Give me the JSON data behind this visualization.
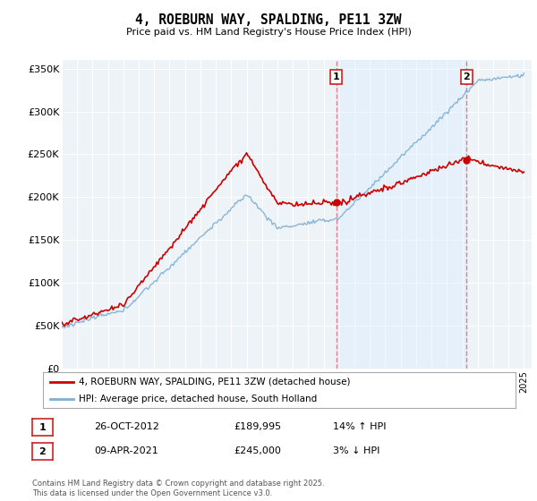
{
  "title": "4, ROEBURN WAY, SPALDING, PE11 3ZW",
  "subtitle": "Price paid vs. HM Land Registry's House Price Index (HPI)",
  "ylim": [
    0,
    360000
  ],
  "yticks": [
    0,
    50000,
    100000,
    150000,
    200000,
    250000,
    300000,
    350000
  ],
  "ytick_labels": [
    "£0",
    "£50K",
    "£100K",
    "£150K",
    "£200K",
    "£250K",
    "£300K",
    "£350K"
  ],
  "x_start_year": 1995,
  "x_end_year": 2025,
  "property_color": "#cc0000",
  "hpi_color": "#7bafd4",
  "vline_color": "#e08080",
  "shade_color": "#ddeeff",
  "marker1_year": 2012.82,
  "marker2_year": 2021.27,
  "marker1_value": 189995,
  "marker2_value": 245000,
  "legend_label1": "4, ROEBURN WAY, SPALDING, PE11 3ZW (detached house)",
  "legend_label2": "HPI: Average price, detached house, South Holland",
  "annotation1_label": "1",
  "annotation1_date": "26-OCT-2012",
  "annotation1_price": "£189,995",
  "annotation1_hpi": "14% ↑ HPI",
  "annotation2_label": "2",
  "annotation2_date": "09-APR-2021",
  "annotation2_price": "£245,000",
  "annotation2_hpi": "3% ↓ HPI",
  "footnote": "Contains HM Land Registry data © Crown copyright and database right 2025.\nThis data is licensed under the Open Government Licence v3.0.",
  "background_color": "#ffffff",
  "plot_bg_color": "#eef3f8",
  "grid_color": "#ffffff"
}
